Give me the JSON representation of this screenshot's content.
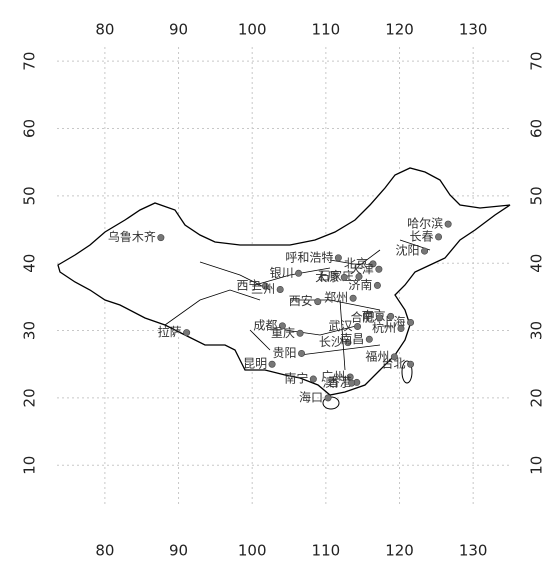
{
  "chart_data": {
    "type": "scatter",
    "point_labels": [
      "乌鲁木齐",
      "拉萨",
      "哈尔滨",
      "长春",
      "沈阳",
      "呼和浩特",
      "北京",
      "天津",
      "石家庄",
      "太原",
      "济南",
      "银川",
      "西宁",
      "兰州",
      "西安",
      "郑州",
      "南京",
      "合肥",
      "上海",
      "武汉",
      "成都",
      "重庆",
      "长沙",
      "南昌",
      "杭州",
      "福州",
      "贵阳",
      "昆明",
      "南宁",
      "广州",
      "台北",
      "香港",
      "澳门",
      "海口"
    ],
    "x": [
      87.6,
      91.1,
      126.6,
      125.3,
      123.4,
      111.7,
      116.4,
      117.2,
      114.5,
      112.5,
      117.0,
      106.3,
      101.8,
      103.8,
      108.9,
      113.7,
      118.8,
      117.3,
      121.5,
      114.3,
      104.1,
      106.5,
      113.0,
      115.9,
      120.2,
      119.3,
      106.7,
      102.7,
      108.3,
      113.3,
      121.5,
      114.2,
      113.5,
      110.3
    ],
    "values": [
      43.8,
      29.7,
      45.8,
      43.9,
      41.8,
      40.8,
      39.9,
      39.1,
      38.0,
      37.9,
      36.7,
      38.5,
      36.6,
      36.1,
      34.3,
      34.8,
      32.1,
      31.9,
      31.2,
      30.6,
      30.7,
      29.6,
      28.2,
      28.7,
      30.3,
      26.1,
      26.6,
      25.0,
      22.8,
      23.1,
      25.0,
      22.3,
      22.2,
      20.0
    ],
    "color": "#777777",
    "xlim": [
      73.5,
      135
    ],
    "ylim": [
      4.1,
      72.1
    ],
    "xticks": [
      80,
      90,
      100,
      110,
      120,
      130
    ],
    "yticks": [
      10,
      20,
      30,
      40,
      50,
      60,
      70
    ],
    "grid": true
  }
}
